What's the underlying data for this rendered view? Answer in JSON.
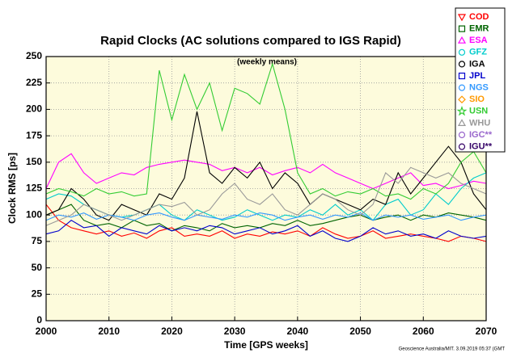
{
  "chart_data": {
    "type": "line",
    "title": "Rapid Clocks (AC solutions compared to IGS Rapid)",
    "annotation": "(weekly means)",
    "x_label": "Time [GPS weeks]",
    "y_label": "Clock RMS [ps]",
    "footer": "Geoscience Australia/MIT. 3.09.2019 05:37 (GMT",
    "xlim": [
      2000,
      2070
    ],
    "xticks": [
      2000,
      2010,
      2020,
      2030,
      2040,
      2050,
      2060,
      2070
    ],
    "ylim": [
      0,
      250
    ],
    "yticks": [
      0,
      25,
      50,
      75,
      100,
      125,
      150,
      175,
      200,
      225,
      250
    ],
    "grid": true,
    "legend": "top-right",
    "x": [
      2000,
      2002,
      2004,
      2006,
      2008,
      2010,
      2012,
      2014,
      2016,
      2018,
      2020,
      2022,
      2024,
      2026,
      2028,
      2030,
      2032,
      2034,
      2036,
      2038,
      2040,
      2042,
      2044,
      2046,
      2048,
      2050,
      2052,
      2054,
      2056,
      2058,
      2060,
      2062,
      2064,
      2066,
      2068,
      2070
    ],
    "series": [
      {
        "name": "COD",
        "color": "#ff0000",
        "marker": "triangle-down",
        "values": [
          110,
          95,
          88,
          85,
          82,
          85,
          80,
          83,
          78,
          85,
          88,
          80,
          82,
          80,
          85,
          78,
          82,
          80,
          84,
          82,
          85,
          80,
          88,
          82,
          78,
          80,
          85,
          78,
          80,
          82,
          80,
          78,
          75,
          80,
          78,
          75
        ]
      },
      {
        "name": "EMR",
        "color": "#006400",
        "marker": "square",
        "values": [
          100,
          105,
          110,
          95,
          90,
          92,
          88,
          95,
          90,
          92,
          85,
          90,
          88,
          85,
          92,
          88,
          90,
          88,
          92,
          90,
          95,
          90,
          92,
          95,
          98,
          100,
          95,
          98,
          100,
          95,
          100,
          98,
          102,
          100,
          98,
          95
        ]
      },
      {
        "name": "ESA",
        "color": "#ff00ff",
        "marker": "triangle-up",
        "values": [
          125,
          150,
          158,
          140,
          130,
          135,
          140,
          138,
          145,
          148,
          150,
          152,
          150,
          148,
          142,
          145,
          140,
          145,
          138,
          142,
          145,
          140,
          148,
          140,
          135,
          130,
          125,
          130,
          135,
          140,
          128,
          130,
          125,
          128,
          132,
          130
        ]
      },
      {
        "name": "GFZ",
        "color": "#00cccc",
        "marker": "circle",
        "values": [
          115,
          120,
          118,
          110,
          105,
          100,
          98,
          100,
          105,
          110,
          100,
          95,
          105,
          100,
          95,
          98,
          105,
          100,
          95,
          100,
          98,
          105,
          100,
          110,
          100,
          105,
          95,
          110,
          115,
          100,
          105,
          120,
          110,
          125,
          135,
          140
        ]
      },
      {
        "name": "IGA",
        "color": "#000000",
        "marker": "circle",
        "values": [
          100,
          105,
          125,
          115,
          100,
          95,
          110,
          105,
          100,
          120,
          115,
          135,
          198,
          140,
          130,
          145,
          135,
          150,
          125,
          140,
          130,
          110,
          120,
          115,
          110,
          105,
          115,
          110,
          140,
          120,
          135,
          150,
          165,
          150,
          120,
          105
        ]
      },
      {
        "name": "JPL",
        "color": "#0000cc",
        "marker": "square",
        "values": [
          82,
          85,
          95,
          88,
          90,
          80,
          88,
          85,
          82,
          90,
          85,
          88,
          85,
          90,
          88,
          82,
          85,
          88,
          82,
          85,
          90,
          80,
          85,
          78,
          75,
          80,
          88,
          82,
          85,
          80,
          82,
          78,
          85,
          80,
          78,
          80
        ]
      },
      {
        "name": "NGS",
        "color": "#3399ff",
        "marker": "circle",
        "values": [
          95,
          100,
          98,
          102,
          96,
          100,
          98,
          95,
          100,
          102,
          98,
          95,
          100,
          98,
          96,
          100,
          98,
          102,
          100,
          95,
          98,
          100,
          96,
          100,
          98,
          102,
          95,
          100,
          98,
          100,
          96,
          98,
          100,
          95,
          98,
          100
        ]
      },
      {
        "name": "SIO",
        "color": "#ff9900",
        "marker": "diamond",
        "values": [
          null,
          null,
          null,
          null,
          null,
          null,
          null,
          null,
          null,
          null,
          null,
          null,
          null,
          null,
          null,
          null,
          null,
          null,
          null,
          null,
          null,
          null,
          null,
          null,
          null,
          null,
          null,
          null,
          null,
          null,
          null,
          null,
          null,
          null,
          null,
          null
        ]
      },
      {
        "name": "USN",
        "color": "#33cc33",
        "marker": "star",
        "values": [
          120,
          125,
          122,
          118,
          125,
          120,
          122,
          118,
          120,
          237,
          190,
          233,
          200,
          225,
          180,
          220,
          215,
          205,
          243,
          200,
          140,
          120,
          125,
          118,
          122,
          120,
          125,
          118,
          120,
          115,
          125,
          120,
          130,
          150,
          160,
          140
        ]
      },
      {
        "name": "WHU",
        "color": "#999999",
        "marker": "triangle-up",
        "values": [
          90,
          95,
          100,
          110,
          105,
          100,
          95,
          100,
          105,
          110,
          108,
          112,
          100,
          105,
          120,
          130,
          115,
          110,
          120,
          105,
          100,
          110,
          120,
          115,
          105,
          100,
          110,
          140,
          130,
          145,
          140,
          135,
          140,
          130,
          125,
          120
        ]
      },
      {
        "name": "IGC**",
        "color": "#9966cc",
        "marker": "circle",
        "values": [
          null,
          null,
          null,
          null,
          null,
          null,
          null,
          null,
          null,
          null,
          null,
          null,
          null,
          null,
          null,
          null,
          null,
          null,
          null,
          null,
          null,
          null,
          null,
          null,
          null,
          null,
          null,
          null,
          null,
          null,
          null,
          null,
          null,
          null,
          null,
          null
        ]
      },
      {
        "name": "IGU**",
        "color": "#330066",
        "marker": "circle",
        "values": [
          null,
          null,
          null,
          null,
          null,
          null,
          null,
          null,
          null,
          null,
          null,
          null,
          null,
          null,
          null,
          null,
          null,
          null,
          null,
          null,
          null,
          null,
          null,
          null,
          null,
          null,
          null,
          null,
          null,
          null,
          null,
          null,
          null,
          null,
          null,
          null
        ]
      }
    ]
  }
}
